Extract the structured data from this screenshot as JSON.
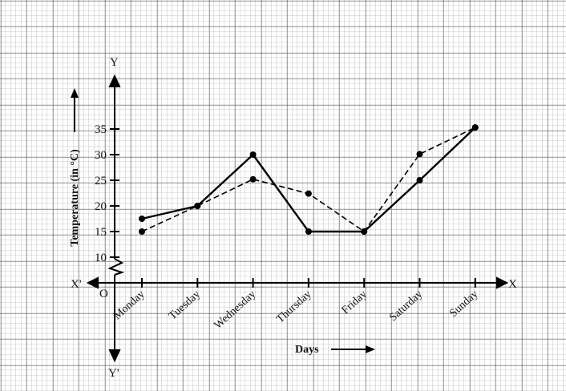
{
  "chart_data": {
    "type": "line",
    "categories": [
      "Monday",
      "Tuesday",
      "Wednesday",
      "Thursday",
      "Friday",
      "Saturday",
      "Sunday"
    ],
    "series": [
      {
        "style": "solid",
        "values": [
          17.5,
          20,
          30,
          15,
          15,
          25,
          35.3
        ]
      },
      {
        "style": "dashed",
        "values": [
          15,
          20,
          25.2,
          22.4,
          15,
          30.1,
          35.3
        ]
      }
    ],
    "yticks": [
      10,
      15,
      20,
      25,
      30,
      35
    ],
    "ylabel": "Temperature (in °C)",
    "xlabel": "Days",
    "axis_labels": {
      "x_pos": "X",
      "x_neg": "X'",
      "y_pos": "Y",
      "y_neg": "Y'",
      "origin": "O"
    },
    "axis_break": true,
    "grid": true,
    "background": "graph paper"
  }
}
